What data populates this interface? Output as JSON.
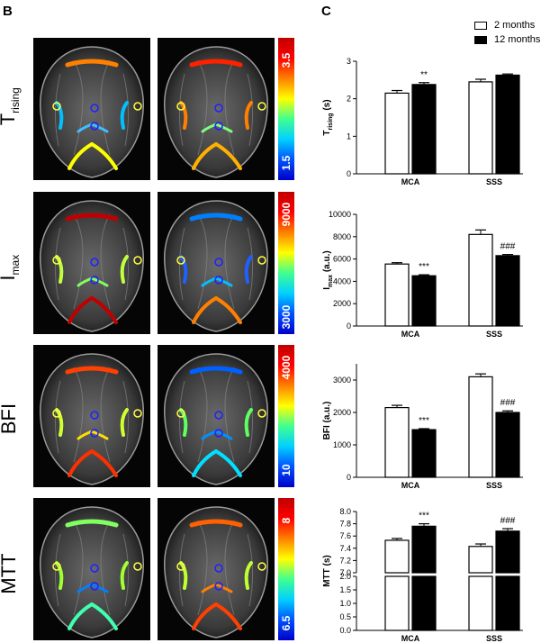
{
  "panels": {
    "left": "B",
    "right": "C"
  },
  "legend": [
    {
      "label": "2 months",
      "fill": "#ffffff"
    },
    {
      "label": "12 months",
      "fill": "#000000"
    }
  ],
  "rows": [
    {
      "main": "T",
      "sub": "rising",
      "cmax": "3.5",
      "cmin": "1.5"
    },
    {
      "main": "I",
      "sub": "max",
      "cmax": "9000",
      "cmin": "3000"
    },
    {
      "main": "BFI",
      "sub": "",
      "cmax": "4000",
      "cmin": "10"
    },
    {
      "main": "MTT",
      "sub": "",
      "cmax": "8",
      "cmin": "6.5"
    }
  ],
  "colors": {
    "jet": [
      "#0000c8",
      "#0050ff",
      "#00d0ff",
      "#40ff90",
      "#ffff00",
      "#ff8000",
      "#ff0000",
      "#c00000"
    ]
  },
  "chart_data": [
    {
      "type": "bar",
      "categories": [
        "MCA",
        "SSS"
      ],
      "series": [
        {
          "name": "2 months",
          "values": [
            2.15,
            2.45
          ],
          "errors": [
            0.07,
            0.07
          ]
        },
        {
          "name": "12 months",
          "values": [
            2.38,
            2.63
          ],
          "errors": [
            0.05,
            0.03
          ]
        }
      ],
      "ylabel_main": "T",
      "ylabel_sub": "rising",
      "ylabel_unit": "(s)",
      "ylim": [
        0,
        3
      ],
      "yticks": [
        "0",
        "1",
        "2",
        "3"
      ],
      "annotations": [
        {
          "category": "MCA",
          "text": "**"
        }
      ]
    },
    {
      "type": "bar",
      "categories": [
        "MCA",
        "SSS"
      ],
      "series": [
        {
          "name": "2 months",
          "values": [
            5550,
            8200
          ],
          "errors": [
            120,
            400
          ]
        },
        {
          "name": "12 months",
          "values": [
            4500,
            6300
          ],
          "errors": [
            90,
            100
          ]
        }
      ],
      "ylabel_main": "I",
      "ylabel_sub": "max",
      "ylabel_unit": "(a.u.)",
      "ylim": [
        0,
        10000
      ],
      "yticks": [
        "0",
        "2000",
        "4000",
        "6000",
        "8000",
        "10000"
      ],
      "annotations": [
        {
          "category": "MCA",
          "text": "***"
        },
        {
          "category": "SSS",
          "text": "###"
        }
      ]
    },
    {
      "type": "bar",
      "categories": [
        "MCA",
        "SSS"
      ],
      "series": [
        {
          "name": "2 months",
          "values": [
            2150,
            3100
          ],
          "errors": [
            70,
            90
          ]
        },
        {
          "name": "12 months",
          "values": [
            1470,
            2000
          ],
          "errors": [
            30,
            50
          ]
        }
      ],
      "ylabel_main": "BFI",
      "ylabel_sub": "",
      "ylabel_unit": "(a.u.)",
      "ylim": [
        0,
        3500
      ],
      "yticks": [
        "0",
        "1000",
        "2000",
        "3000"
      ],
      "annotations": [
        {
          "category": "MCA",
          "text": "***"
        },
        {
          "category": "SSS",
          "text": "###"
        }
      ]
    },
    {
      "type": "bar",
      "categories": [
        "MCA",
        "SSS"
      ],
      "series": [
        {
          "name": "2 months",
          "values": [
            7.53,
            7.43
          ],
          "errors": [
            0.03,
            0.04
          ]
        },
        {
          "name": "12 months",
          "values": [
            7.76,
            7.68
          ],
          "errors": [
            0.04,
            0.04
          ]
        }
      ],
      "ylabel_main": "MTT",
      "ylabel_sub": "",
      "ylabel_unit": "(s)",
      "broken_axis": {
        "lower": [
          0,
          2.0
        ],
        "upper": [
          7.0,
          8.0
        ]
      },
      "yticks_lower": [
        "0.0",
        "0.5",
        "1.0",
        "1.5",
        "2.0"
      ],
      "yticks_upper": [
        "7.0",
        "7.2",
        "7.4",
        "7.6",
        "7.8",
        "8.0"
      ],
      "annotations": [
        {
          "category": "MCA",
          "text": "***"
        },
        {
          "category": "SSS",
          "text": "###"
        }
      ]
    }
  ]
}
